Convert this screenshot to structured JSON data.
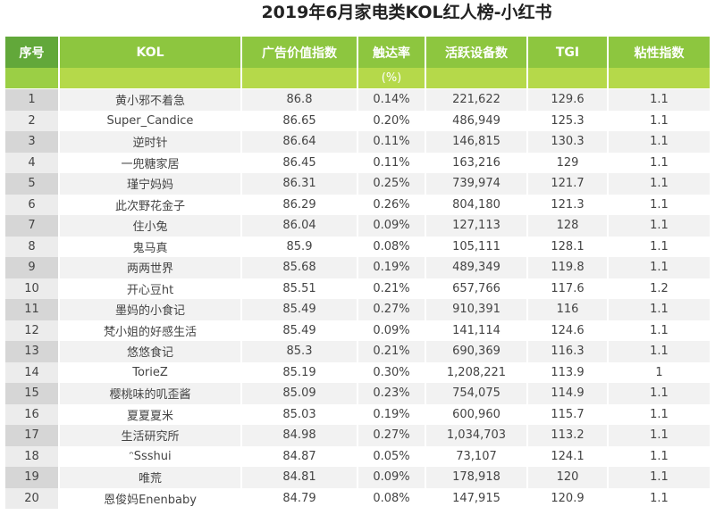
{
  "title": "2019年6月家电类KOL红人榜-小红书",
  "headers": [
    "序号",
    "KOL",
    "广告价值指数",
    "触达率",
    "活跃设备数",
    "TGI",
    "粘性指数"
  ],
  "subheader_unit": "(%)",
  "rows": [
    [
      "1",
      "黄小邪不着急",
      "86.8",
      "0.14%",
      "221,622",
      "129.6",
      "1.1"
    ],
    [
      "2",
      "Super_Candice",
      "86.65",
      "0.20%",
      "486,949",
      "125.3",
      "1.1"
    ],
    [
      "3",
      "逆时针",
      "86.64",
      "0.11%",
      "146,815",
      "130.3",
      "1.1"
    ],
    [
      "4",
      "一兜糖家居",
      "86.45",
      "0.11%",
      "163,216",
      "129",
      "1.1"
    ],
    [
      "5",
      "瑾宁妈妈",
      "86.31",
      "0.25%",
      "739,974",
      "121.7",
      "1.1"
    ],
    [
      "6",
      "此次野花金子",
      "86.29",
      "0.26%",
      "804,180",
      "121.3",
      "1.1"
    ],
    [
      "7",
      "住小兔",
      "86.04",
      "0.09%",
      "127,113",
      "128",
      "1.1"
    ],
    [
      "8",
      "鬼马真",
      "85.9",
      "0.08%",
      "105,111",
      "128.1",
      "1.1"
    ],
    [
      "9",
      "两两世界",
      "85.68",
      "0.19%",
      "489,349",
      "119.8",
      "1.1"
    ],
    [
      "10",
      "开心豆ht",
      "85.51",
      "0.21%",
      "657,766",
      "117.6",
      "1.2"
    ],
    [
      "11",
      "墨妈的小食记",
      "85.49",
      "0.27%",
      "910,391",
      "116",
      "1.1"
    ],
    [
      "12",
      "梵小姐的好感生活",
      "85.49",
      "0.09%",
      "141,114",
      "124.6",
      "1.1"
    ],
    [
      "13",
      "悠悠食记",
      "85.3",
      "0.21%",
      "690,369",
      "116.3",
      "1.1"
    ],
    [
      "14",
      "TorieZ",
      "85.19",
      "0.30%",
      "1,208,221",
      "113.9",
      "1"
    ],
    [
      "15",
      "樱桃味的叽歪酱",
      "85.09",
      "0.23%",
      "754,075",
      "114.9",
      "1.1"
    ],
    [
      "16",
      "夏夏夏米",
      "85.03",
      "0.19%",
      "600,960",
      "115.7",
      "1.1"
    ],
    [
      "17",
      "生活研究所",
      "84.98",
      "0.27%",
      "1,034,703",
      "113.2",
      "1.1"
    ],
    [
      "18",
      "ᵔSsshui",
      "84.87",
      "0.05%",
      "73,107",
      "124.1",
      "1.1"
    ],
    [
      "19",
      "唯荒",
      "84.81",
      "0.09%",
      "178,918",
      "120",
      "1.1"
    ],
    [
      "20",
      "恩俊妈Enenbaby",
      "84.79",
      "0.08%",
      "147,915",
      "120.9",
      "1.1"
    ]
  ]
}
